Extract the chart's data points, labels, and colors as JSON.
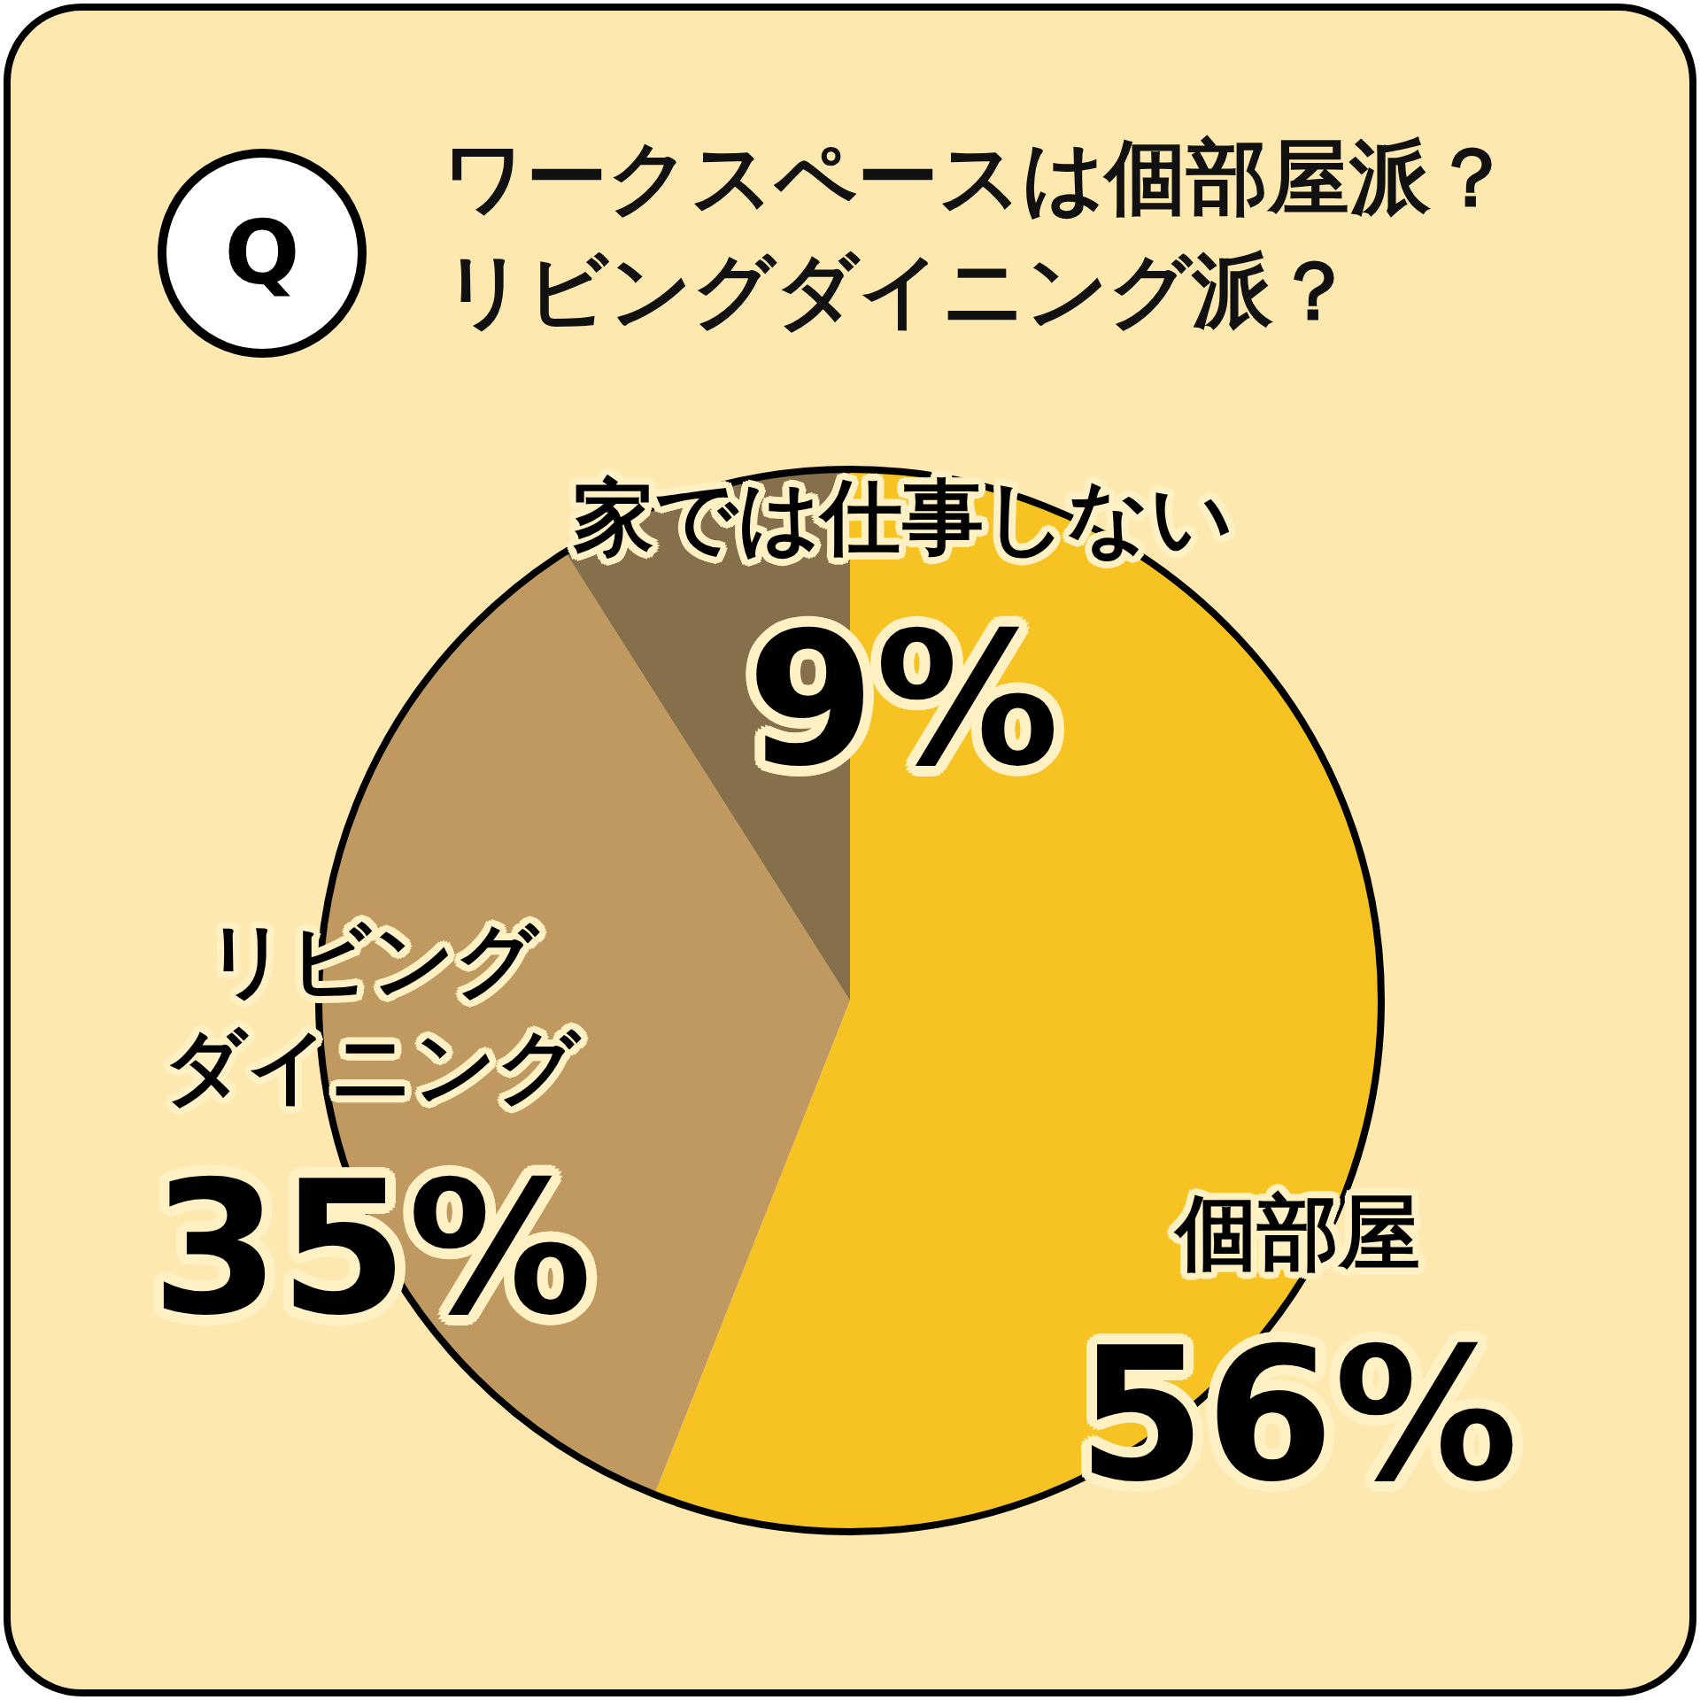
{
  "chart_data": {
    "type": "pie",
    "title": "ワークスペースは個部屋派？リビングダイニング派？",
    "categories": [
      "個部屋",
      "リビングダイニング",
      "家では仕事しない"
    ],
    "values": [
      56,
      35,
      9
    ],
    "colors": [
      "#f7c322",
      "#bf9960",
      "#86704b"
    ],
    "value_labels": [
      "56%",
      "35%",
      "9%"
    ],
    "legend": false,
    "annotations": [
      "Q"
    ]
  }
}
